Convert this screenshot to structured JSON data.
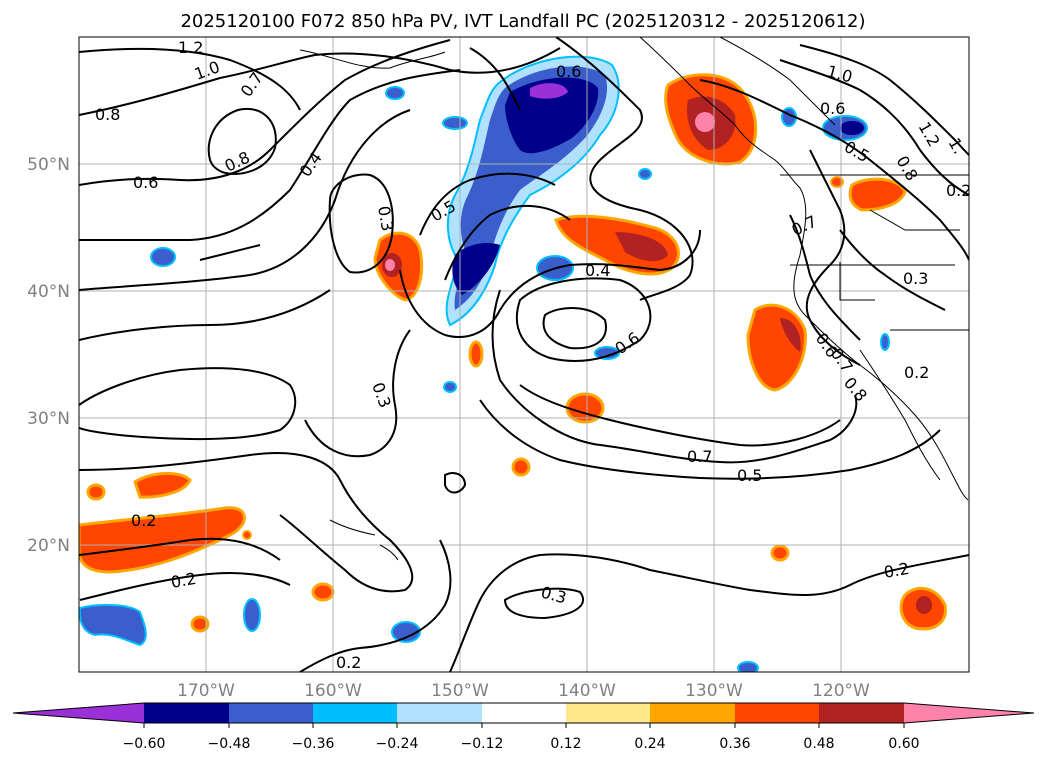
{
  "title": "2025120100 F072 850 hPa PV, IVT Landfall PC (2025120312 - 2025120612)",
  "map": {
    "lat_labels": [
      "50°N",
      "40°N",
      "30°N",
      "20°N"
    ],
    "lon_labels": [
      "170°W",
      "160°W",
      "150°W",
      "140°W",
      "130°W",
      "120°W"
    ],
    "contour_labels": [
      "1.2",
      "1.0",
      "0.7",
      "0.8",
      "0.8",
      "0.6",
      "0.4",
      "0.3",
      "0.5",
      "0.4",
      "0.6",
      "0.3",
      "0.6",
      "0.7",
      "0.5",
      "0.2",
      "0.2",
      "0.2",
      "0.3",
      "0.2",
      "1.0",
      "0.6",
      "0.5",
      "1.2",
      "1.",
      "0.8",
      "0.7",
      "0.3",
      "0.6",
      "0.7",
      "0.8",
      "0.2",
      "0.2"
    ]
  },
  "colorbar": {
    "ticks": [
      "−0.60",
      "−0.48",
      "−0.36",
      "−0.24",
      "−0.12",
      "0.12",
      "0.24",
      "0.36",
      "0.48",
      "0.60"
    ],
    "colors": [
      "#9b30d9",
      "#00008b",
      "#3a5fcd",
      "#00bfff",
      "#b0e2ff",
      "#ffffff",
      "#fee88b",
      "#ffa500",
      "#ff4500",
      "#b22222",
      "#ff82ab"
    ]
  },
  "shading_colors": {
    "neg_weak": "#b0e2ff",
    "neg_mid": "#00bfff",
    "neg_strong": "#3a5fcd",
    "neg_max": "#00008b",
    "neg_ext": "#9b30d9",
    "pos_weak": "#fee88b",
    "pos_mid": "#ffa500",
    "pos_strong": "#ff4500",
    "pos_max": "#b22222",
    "pos_ext": "#ff82ab"
  }
}
